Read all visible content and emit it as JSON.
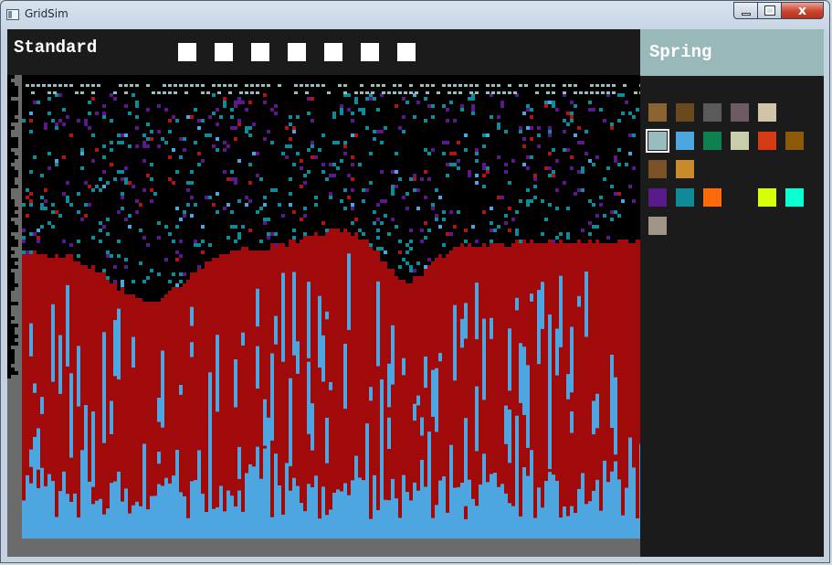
{
  "window": {
    "title": "GridSim",
    "icon": "app-window-icon",
    "controls": [
      {
        "name": "minimize-button",
        "icon": "minimize-icon"
      },
      {
        "name": "maximize-button",
        "icon": "maximize-icon"
      },
      {
        "name": "close-button",
        "icon": "close-icon",
        "glyph": "x"
      }
    ]
  },
  "toolbar": {
    "mode_label": "Standard",
    "speed_buttons": 7,
    "speed_button_color": "#ffffff"
  },
  "side_panel": {
    "season_label": "Spring",
    "season_color": "#99b9b9",
    "palette_rows": [
      [
        "#8a6431",
        "#6a4a1c",
        "#5a5a5a",
        "#6e5a64",
        "#d2c4a8"
      ],
      [
        "#9abcbc",
        "#4ea6e0",
        "#0f8050",
        "#c8ceaa",
        "#d63a14",
        "#8a5a0a"
      ],
      [
        "#7a5226",
        "#c88a2a"
      ],
      [
        "#5a1a8a",
        "#0f8a98",
        "#fe6a0a",
        null,
        "#d6fe0a",
        "#0affd2"
      ],
      [
        "#a09486"
      ]
    ],
    "selected_swatch": [
      1,
      0
    ]
  },
  "simulation": {
    "colors": {
      "background": "#000000",
      "fluid": "#a00a0a",
      "water": "#4ea6e0",
      "plant": "#0f8a98",
      "spore": "#5a1a8a",
      "wall": "#6b6b6b",
      "vapor": "#9abcbc",
      "ember": "#b01515"
    }
  }
}
